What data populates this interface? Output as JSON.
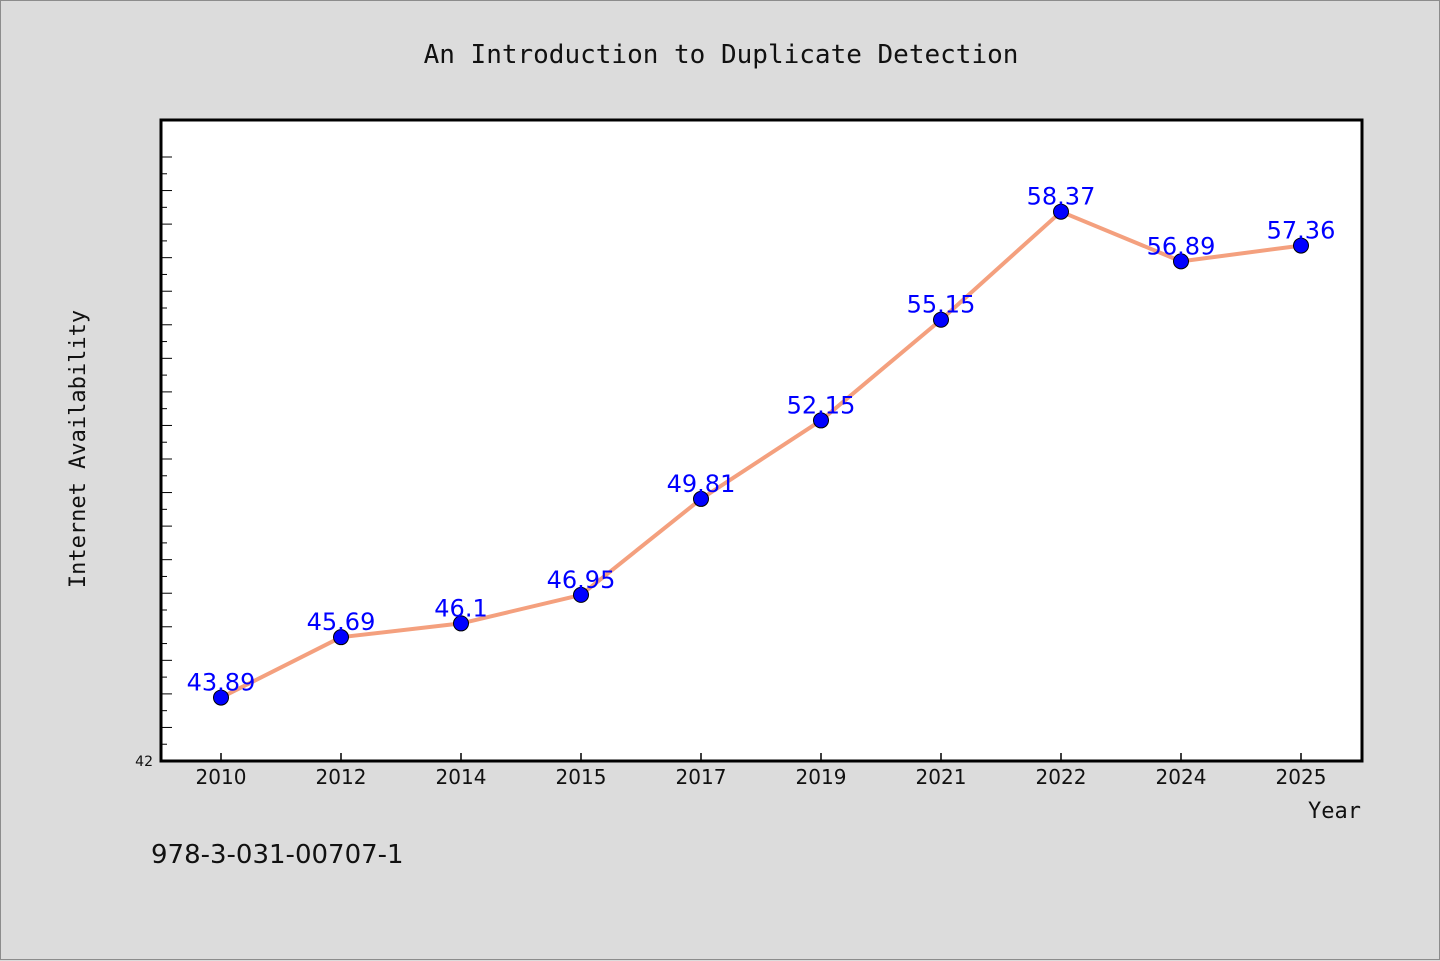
{
  "footer": {
    "isbn": "978-3-031-00707-1"
  },
  "colors": {
    "background": "#dcdcdc",
    "plot_bg": "#ffffff",
    "line": "#f4a07e",
    "marker": "#0000ff",
    "label": "#0000ff"
  },
  "chart_data": {
    "type": "line",
    "title": "An Introduction to Duplicate Detection",
    "xlabel": "Year",
    "ylabel": "Internet Availability",
    "categories": [
      "2010",
      "2012",
      "2014",
      "2015",
      "2017",
      "2019",
      "2021",
      "2022",
      "2024",
      "2025"
    ],
    "series": [
      {
        "values": [
          43.89,
          45.69,
          46.1,
          46.95,
          49.81,
          52.15,
          55.15,
          58.37,
          56.89,
          57.36
        ]
      }
    ],
    "value_labels": [
      "43.89",
      "45.69",
      "46.1",
      "46.95",
      "49.81",
      "52.15",
      "55.15",
      "58.37",
      "56.89",
      "57.36"
    ],
    "ylim": [
      42,
      60
    ],
    "ytick_labels": [
      "42"
    ],
    "grid": false,
    "legend": "none"
  }
}
